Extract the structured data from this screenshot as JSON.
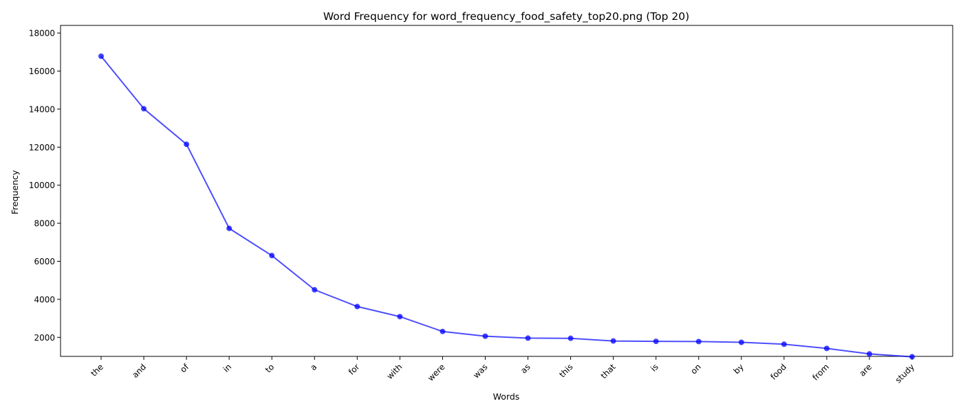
{
  "chart_data": {
    "type": "line",
    "title": "Word Frequency for word_frequency_food_safety_top20.png (Top 20)",
    "xlabel": "Words",
    "ylabel": "Frequency",
    "categories": [
      "the",
      "and",
      "of",
      "in",
      "to",
      "a",
      "for",
      "with",
      "were",
      "was",
      "as",
      "this",
      "that",
      "is",
      "on",
      "by",
      "food",
      "from",
      "are",
      "study"
    ],
    "values": [
      16780,
      14020,
      12150,
      7730,
      6300,
      4500,
      3620,
      3090,
      2310,
      2060,
      1960,
      1950,
      1810,
      1790,
      1780,
      1740,
      1640,
      1420,
      1130,
      980
    ],
    "ylim": [
      1000,
      18400
    ],
    "yticks": [
      2000,
      4000,
      6000,
      8000,
      10000,
      12000,
      14000,
      16000,
      18000
    ],
    "grid": false,
    "color": "#0000ff",
    "x_tick_rotation_deg": 45
  }
}
